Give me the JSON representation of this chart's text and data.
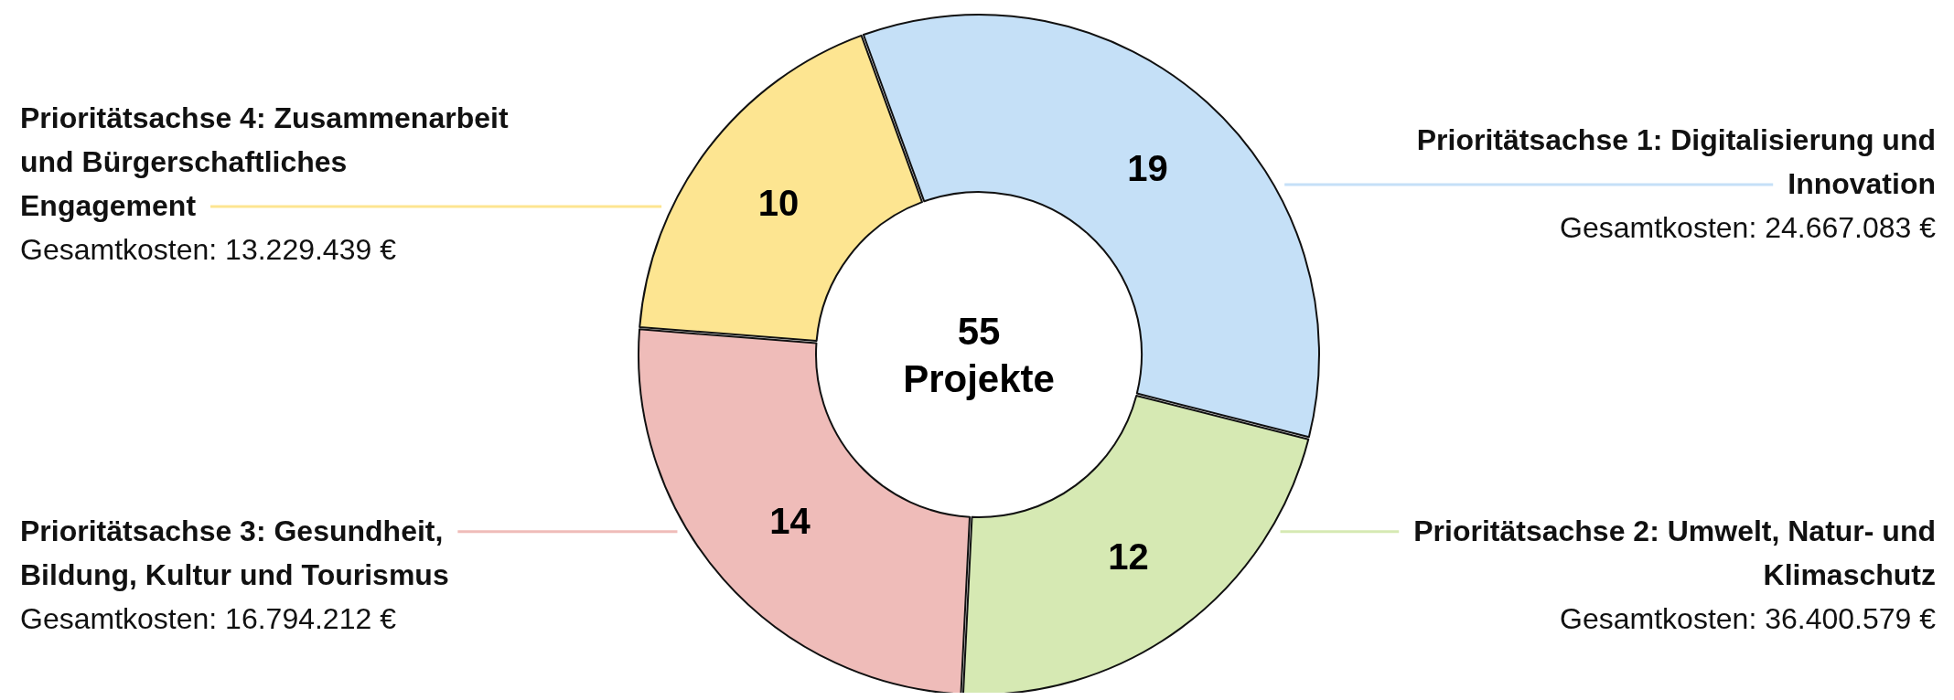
{
  "chart_data": {
    "type": "donut",
    "categories": [
      "Prioritätsachse 1: Digitalisierung und Innovation",
      "Prioritätsachse 2: Umwelt, Natur- und Klimaschutz",
      "Prioritätsachse 3: Gesundheit, Bildung, Kultur und Tourismus",
      "Prioritätsachse 4: Zusammenarbeit und Bürgerschaftliches Engagement"
    ],
    "values": [
      19,
      12,
      14,
      10
    ],
    "colors": [
      "#c5e0f7",
      "#d6e9b3",
      "#efbcb9",
      "#fde591"
    ],
    "data_labels": true,
    "annotations": [
      "Gesamtkosten: 24.667.083 €",
      "Gesamtkosten: 36.400.579 €",
      "Gesamtkosten: 16.794.212 €",
      "Gesamtkosten: 13.229.439 €",
      "55 Projekte"
    ]
  }
}
